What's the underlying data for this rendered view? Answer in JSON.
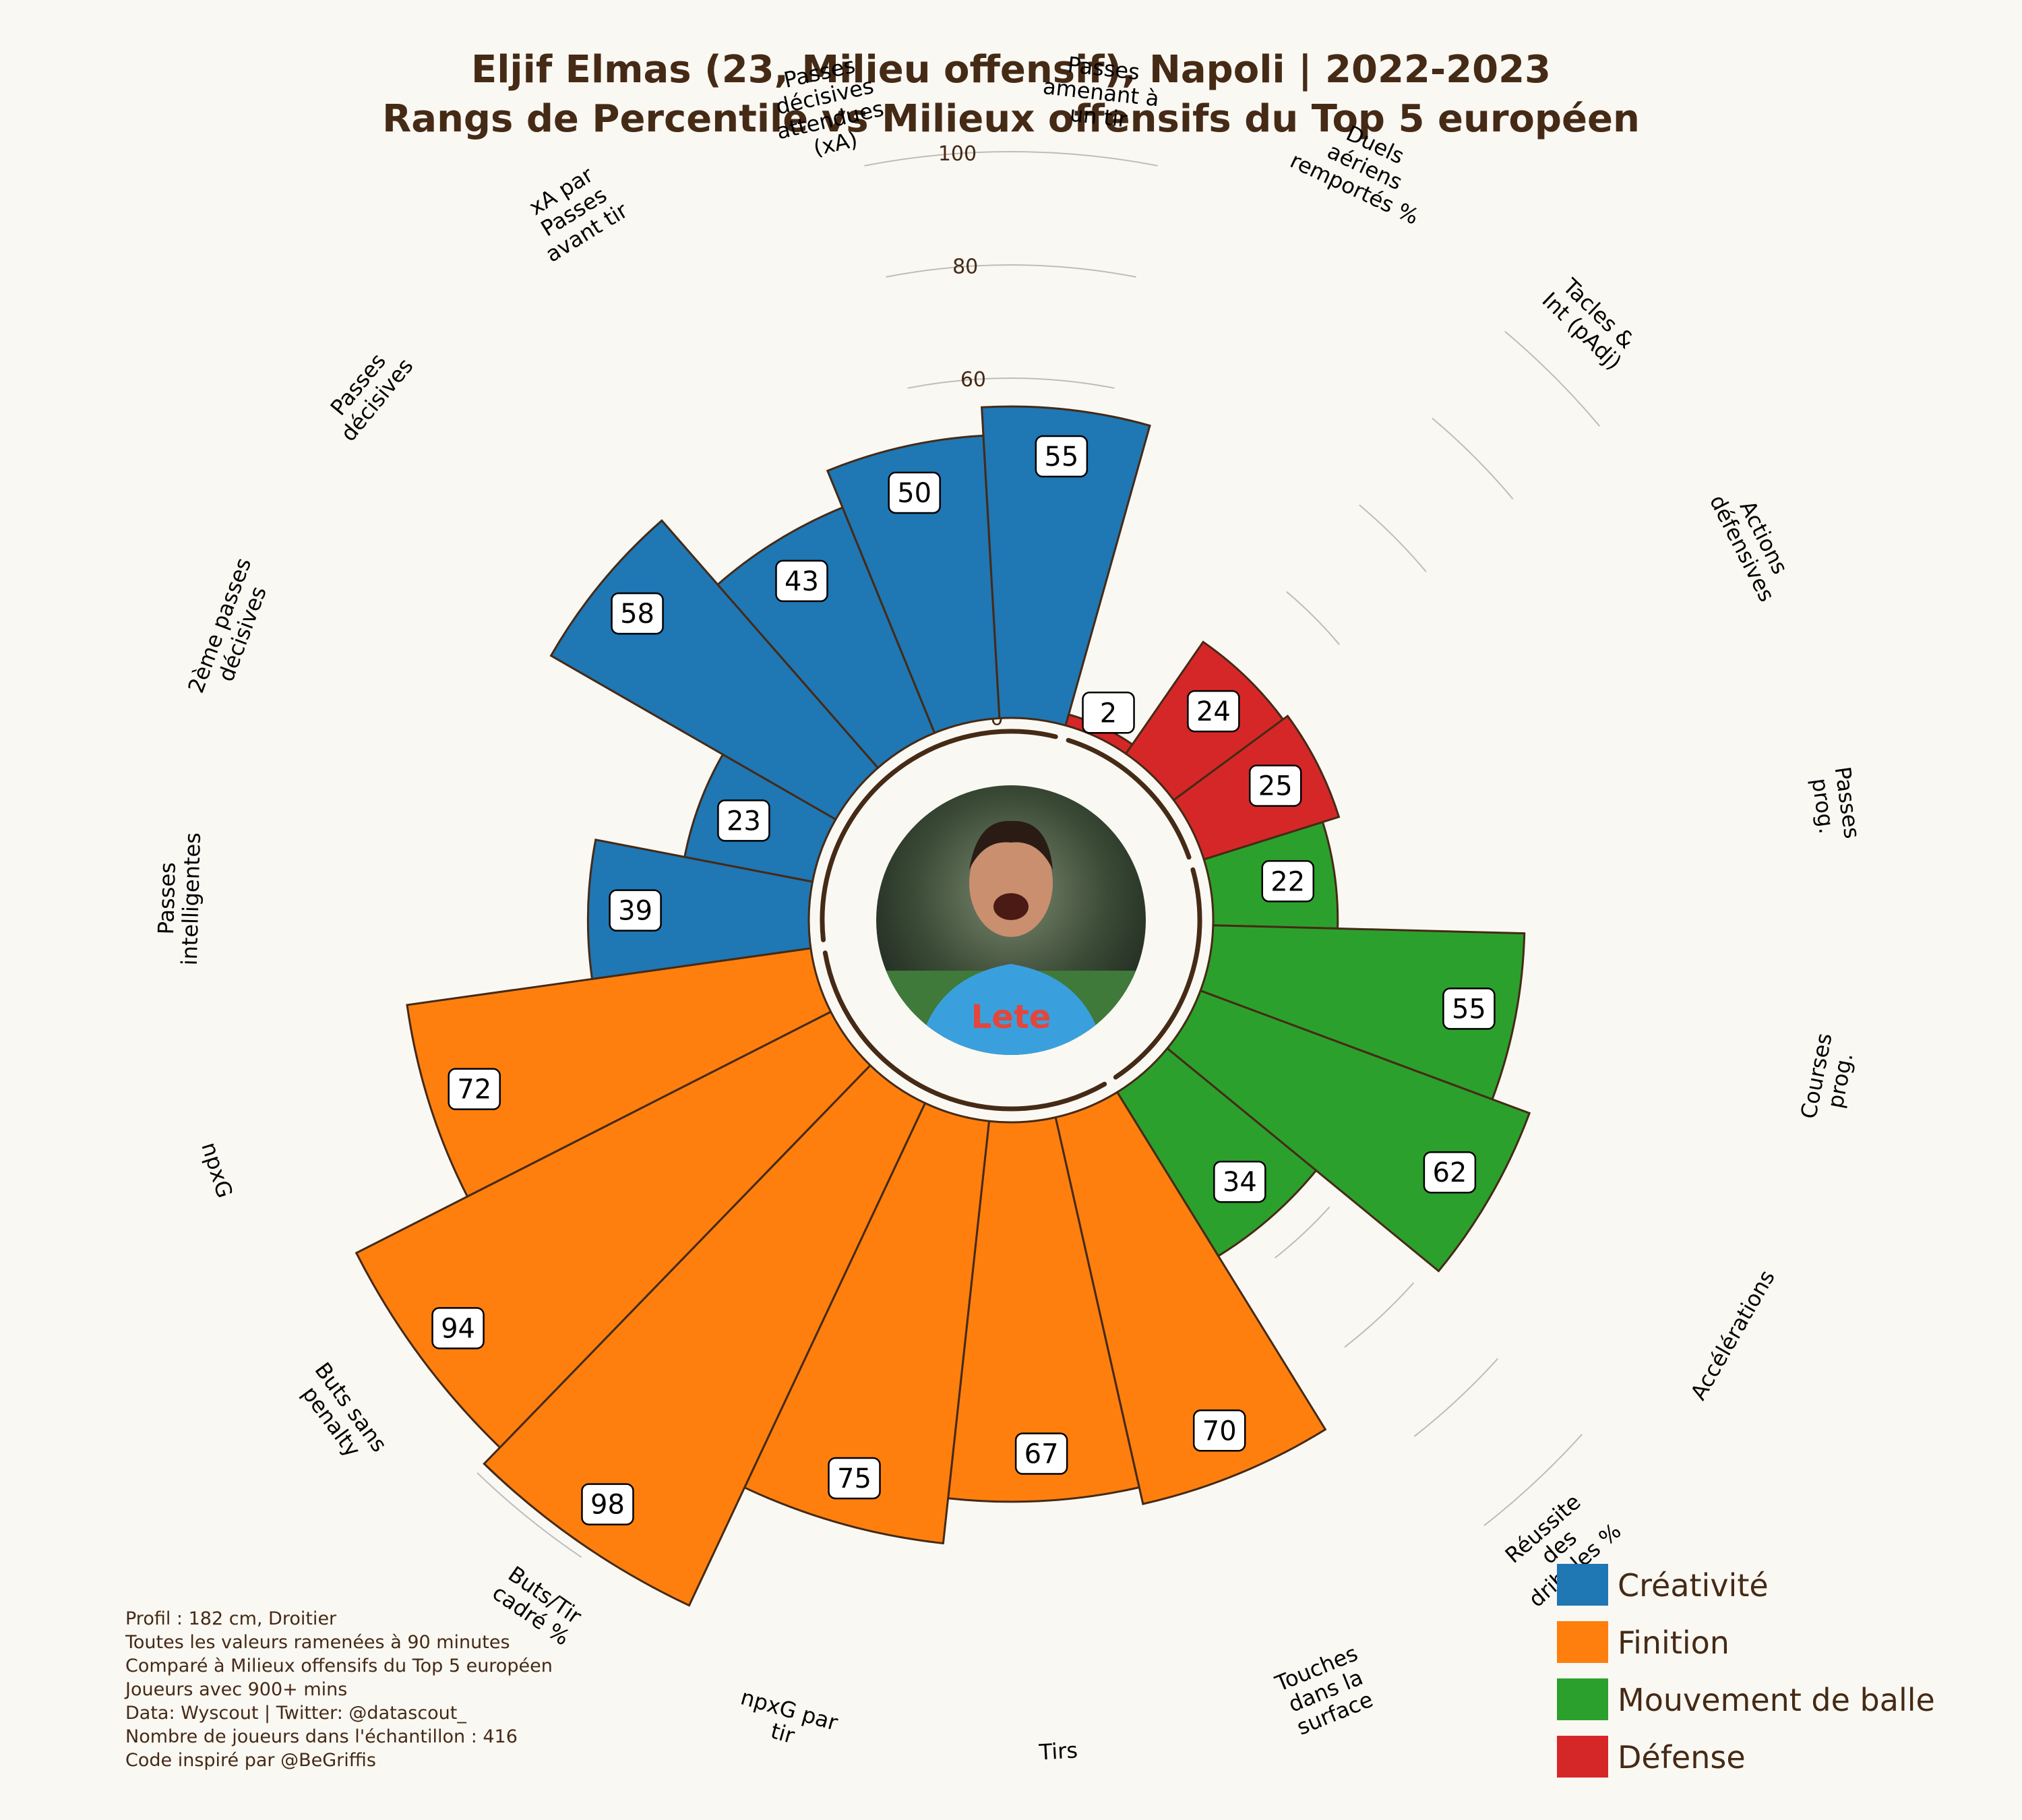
{
  "title_line1": "Eljif Elmas (23, Milieu offensif), Napoli | 2022-2023",
  "title_line2": "Rangs de Percentile vs Milieux offensifs du Top 5 européen",
  "colors": {
    "background": "#faf8f3",
    "text": "#452a16",
    "Créativité": "#1f77b4",
    "Finition": "#ff7f0e",
    "Mouvement de balle": "#2ca02c",
    "Défense": "#d62728",
    "bar_edge": "#452a16"
  },
  "chart_data": {
    "type": "bar",
    "subtype": "polar-pizza",
    "radial_range": [
      0,
      100
    ],
    "radial_ticks": [
      "0",
      "20",
      "40",
      "60",
      "80",
      "100"
    ],
    "legend_position": "bottom-right",
    "categories": [
      {
        "label": "Passes prog.",
        "value": 22,
        "group": "Mouvement de balle"
      },
      {
        "label": "Courses prog.",
        "value": 55,
        "group": "Mouvement de balle"
      },
      {
        "label": "Accélérations",
        "value": 62,
        "group": "Mouvement de balle"
      },
      {
        "label": "Réussite des dribbles %",
        "value": 34,
        "group": "Mouvement de balle"
      },
      {
        "label": "Touches dans la surface",
        "value": 70,
        "group": "Finition"
      },
      {
        "label": "Tirs",
        "value": 67,
        "group": "Finition"
      },
      {
        "label": "npxG par tir",
        "value": 75,
        "group": "Finition"
      },
      {
        "label": "Buts/Tir cadré %",
        "value": 98,
        "group": "Finition"
      },
      {
        "label": "Buts sans penalty",
        "value": 94,
        "group": "Finition"
      },
      {
        "label": "npxG",
        "value": 72,
        "group": "Finition"
      },
      {
        "label": "Passes intelligentes",
        "value": 39,
        "group": "Créativité"
      },
      {
        "label": "2ème passes décisives",
        "value": 23,
        "group": "Créativité"
      },
      {
        "label": "Passes décisives",
        "value": 58,
        "group": "Créativité"
      },
      {
        "label": "xA par Passes avant tir",
        "value": 43,
        "group": "Créativité"
      },
      {
        "label": "Passes décisives attendues (xA)",
        "value": 50,
        "group": "Créativité"
      },
      {
        "label": "Passes amenant à un tir",
        "value": 55,
        "group": "Créativité"
      },
      {
        "label": "Duels aériens remportés %",
        "value": 2,
        "group": "Défense"
      },
      {
        "label": "Tacles & Int (pAdj)",
        "value": 24,
        "group": "Défense"
      },
      {
        "label": "Actions défensives",
        "value": 25,
        "group": "Défense"
      }
    ],
    "legend": [
      "Créativité",
      "Finition",
      "Mouvement de balle",
      "Défense"
    ]
  },
  "footer": [
    "Profil : 182 cm, Droitier",
    "Toutes les valeurs ramenées à 90 minutes",
    "Comparé à Milieux offensifs du Top 5 européen",
    "Joueurs avec 900+ mins",
    "Data: Wyscout | Twitter: @datascout_",
    "Nombre de joueurs dans l'échantillon : 416",
    "Code inspiré par @BeGriffis"
  ],
  "player_photo_icon": "player-photo-circle"
}
